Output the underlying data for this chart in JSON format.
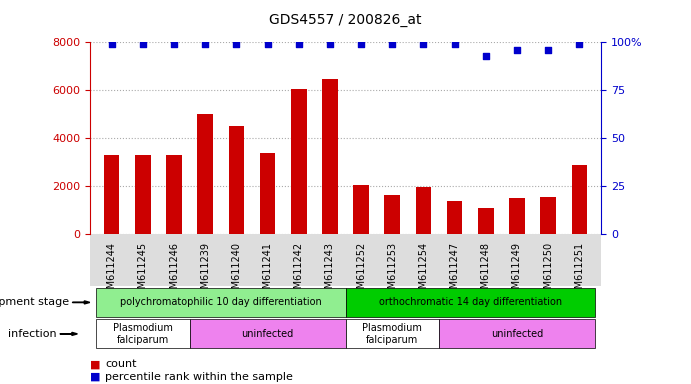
{
  "title": "GDS4557 / 200826_at",
  "samples": [
    "GSM611244",
    "GSM611245",
    "GSM611246",
    "GSM611239",
    "GSM611240",
    "GSM611241",
    "GSM611242",
    "GSM611243",
    "GSM611252",
    "GSM611253",
    "GSM611254",
    "GSM611247",
    "GSM611248",
    "GSM611249",
    "GSM611250",
    "GSM611251"
  ],
  "counts": [
    3300,
    3300,
    3300,
    5000,
    4500,
    3400,
    6050,
    6450,
    2050,
    1650,
    1950,
    1400,
    1100,
    1500,
    1550,
    2900
  ],
  "percentile": [
    99,
    99,
    99,
    99,
    99,
    99,
    99,
    99,
    99,
    99,
    99,
    99,
    93,
    96,
    96,
    99
  ],
  "bar_color": "#cc0000",
  "dot_color": "#0000cc",
  "ylim_left": [
    0,
    8000
  ],
  "ylim_right": [
    0,
    100
  ],
  "yticks_left": [
    0,
    2000,
    4000,
    6000,
    8000
  ],
  "yticks_right": [
    0,
    25,
    50,
    75,
    100
  ],
  "dev_stage_groups": [
    {
      "label": "polychromatophilic 10 day differentiation",
      "start": 0,
      "end": 8,
      "color": "#90ee90"
    },
    {
      "label": "orthochromatic 14 day differentiation",
      "start": 8,
      "end": 16,
      "color": "#00cc00"
    }
  ],
  "infection_groups": [
    {
      "label": "Plasmodium\nfalciparum",
      "start": 0,
      "end": 3,
      "color": "#ffffff"
    },
    {
      "label": "uninfected",
      "start": 3,
      "end": 8,
      "color": "#ee82ee"
    },
    {
      "label": "Plasmodium\nfalciparum",
      "start": 8,
      "end": 11,
      "color": "#ffffff"
    },
    {
      "label": "uninfected",
      "start": 11,
      "end": 16,
      "color": "#ee82ee"
    }
  ],
  "dev_stage_label": "development stage",
  "infection_label": "infection",
  "legend_count_label": "count",
  "legend_percentile_label": "percentile rank within the sample",
  "bg_color": "#ffffff",
  "grid_color": "#aaaaaa",
  "tick_area_color": "#dddddd"
}
